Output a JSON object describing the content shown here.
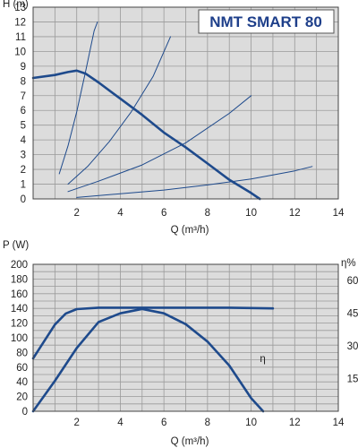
{
  "title": "NMT SMART 80",
  "colors": {
    "plot_bg": "#dcdcdc",
    "grid": "#9a9a9a",
    "line": "#1e4a8c",
    "title_box_bg": "#ffffff",
    "title_text": "#1e3f8a"
  },
  "chart_data": [
    {
      "type": "line",
      "title": "NMT SMART 80",
      "xlabel": "Q (m³/h)",
      "ylabel": "H (m)",
      "xlim": [
        0,
        14
      ],
      "ylim": [
        0,
        13
      ],
      "x_ticks": [
        "2",
        "4",
        "6",
        "8",
        "10",
        "12",
        "14"
      ],
      "y_ticks": [
        "0",
        "1",
        "2",
        "3",
        "4",
        "5",
        "6",
        "7",
        "8",
        "9",
        "10",
        "11",
        "12",
        "13"
      ],
      "grid": true,
      "series": [
        {
          "role": "max_curve",
          "style": "thick",
          "x": [
            0,
            1,
            1.6,
            2.0,
            2.4,
            3,
            4,
            5,
            6,
            7,
            8,
            9,
            10,
            10.4
          ],
          "y": [
            8.2,
            8.4,
            8.6,
            8.7,
            8.5,
            7.9,
            6.8,
            5.7,
            4.5,
            3.5,
            2.4,
            1.3,
            0.4,
            0
          ]
        },
        {
          "role": "system_curve",
          "style": "thin",
          "x": [
            1.2,
            1.6,
            2.0,
            2.4,
            2.8,
            2.95
          ],
          "y": [
            1.7,
            3.6,
            5.9,
            8.6,
            11.4,
            12.0
          ]
        },
        {
          "role": "system_curve",
          "style": "thin",
          "x": [
            1.6,
            2.5,
            3.5,
            4.5,
            5.5,
            6.3
          ],
          "y": [
            1.0,
            2.2,
            3.9,
            5.9,
            8.3,
            11.0
          ]
        },
        {
          "role": "system_curve",
          "style": "thin",
          "x": [
            1.6,
            3,
            5,
            7,
            9,
            10
          ],
          "y": [
            0.5,
            1.2,
            2.3,
            3.8,
            5.8,
            7.0
          ]
        },
        {
          "role": "system_curve",
          "style": "thin",
          "x": [
            2,
            4,
            6,
            8,
            10,
            12,
            12.8
          ],
          "y": [
            0.1,
            0.35,
            0.6,
            0.95,
            1.35,
            1.9,
            2.2
          ]
        }
      ]
    },
    {
      "type": "line",
      "xlabel": "Q (m³/h)",
      "ylabel": "P (W)",
      "y2label": "η%",
      "xlim": [
        0,
        14
      ],
      "ylim": [
        0,
        200
      ],
      "y2lim": [
        0,
        67.5
      ],
      "x_ticks": [
        "2",
        "4",
        "6",
        "8",
        "10",
        "12",
        "14"
      ],
      "y_ticks": [
        "0",
        "20",
        "40",
        "60",
        "80",
        "100",
        "120",
        "140",
        "160",
        "180",
        "200"
      ],
      "y2_ticks": [
        "15",
        "30",
        "45",
        "60"
      ],
      "grid": true,
      "annotations": [
        {
          "text": "η",
          "x": 10.4,
          "y": 67
        }
      ],
      "series": [
        {
          "role": "power",
          "axis": "left",
          "x": [
            0,
            0.5,
            1,
            1.5,
            2,
            3,
            4,
            5,
            6,
            7,
            8,
            9,
            10,
            11
          ],
          "y": [
            72,
            95,
            118,
            133,
            139,
            141,
            141,
            141,
            141,
            141,
            141,
            141,
            140.5,
            140
          ]
        },
        {
          "role": "efficiency",
          "axis": "right",
          "x": [
            0,
            1,
            2,
            3,
            4,
            5,
            6,
            7,
            8,
            9,
            10,
            10.55
          ],
          "y": [
            0,
            14,
            29,
            41,
            45,
            47,
            45,
            40,
            32,
            21,
            6,
            0
          ]
        }
      ]
    }
  ]
}
